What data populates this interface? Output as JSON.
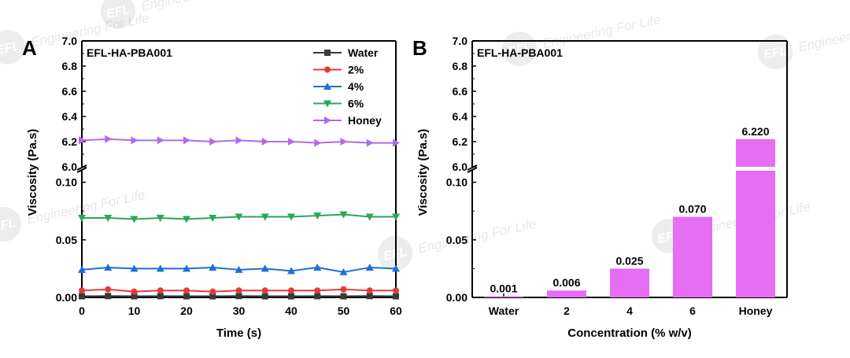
{
  "watermark": {
    "text": "Engineering For Life",
    "logo": "EFL"
  },
  "chart_data": [
    {
      "panel_label": "A",
      "type": "line",
      "title": "EFL-HA-PBA001",
      "xlabel": "Time (s)",
      "ylabel": "Viscosity (Pa.s)",
      "xlim": [
        0,
        60
      ],
      "x_ticks": [
        "0",
        "10",
        "20",
        "30",
        "40",
        "50",
        "60"
      ],
      "y_lower_range": [
        0,
        0.11
      ],
      "y_upper_range": [
        6.0,
        7.0
      ],
      "y_ticks_lower": [
        "0.00",
        "0.05",
        "0.10"
      ],
      "y_ticks_upper": [
        "6.0",
        "6.2",
        "6.4",
        "6.6",
        "6.8",
        "7.0"
      ],
      "x": [
        0,
        5,
        10,
        15,
        20,
        25,
        30,
        35,
        40,
        45,
        50,
        55,
        60
      ],
      "series": [
        {
          "name": "Water",
          "color": "#3a3a3a",
          "marker": "square",
          "values": [
            0.001,
            0.0012,
            0.001,
            0.0011,
            0.001,
            0.001,
            0.0012,
            0.001,
            0.001,
            0.0011,
            0.001,
            0.0012,
            0.001
          ]
        },
        {
          "name": "2%",
          "color": "#e33b3b",
          "marker": "circle",
          "values": [
            0.006,
            0.007,
            0.005,
            0.006,
            0.006,
            0.005,
            0.006,
            0.006,
            0.006,
            0.006,
            0.007,
            0.006,
            0.006
          ]
        },
        {
          "name": "4%",
          "color": "#1f6fd6",
          "marker": "triangle-up",
          "values": [
            0.024,
            0.026,
            0.025,
            0.025,
            0.025,
            0.026,
            0.024,
            0.025,
            0.023,
            0.026,
            0.022,
            0.026,
            0.025
          ]
        },
        {
          "name": "6%",
          "color": "#2ea65a",
          "marker": "triangle-down",
          "values": [
            0.069,
            0.069,
            0.068,
            0.069,
            0.068,
            0.069,
            0.07,
            0.07,
            0.07,
            0.071,
            0.072,
            0.07,
            0.07
          ]
        },
        {
          "name": "Honey",
          "color": "#b26ae8",
          "marker": "triangle-right",
          "values": [
            6.21,
            6.22,
            6.21,
            6.21,
            6.21,
            6.2,
            6.21,
            6.2,
            6.2,
            6.19,
            6.2,
            6.19,
            6.19
          ]
        }
      ]
    },
    {
      "panel_label": "B",
      "type": "bar",
      "title": "EFL-HA-PBA001",
      "xlabel": "Concentration (% w/v)",
      "ylabel": "Viscosity (Pa.s)",
      "bar_color": "#e56ef5",
      "categories": [
        "Water",
        "2",
        "4",
        "6",
        "Honey"
      ],
      "values": [
        0.001,
        0.006,
        0.025,
        0.07,
        6.22
      ],
      "value_labels": [
        "0.001",
        "0.006",
        "0.025",
        "0.070",
        "6.220"
      ],
      "y_lower_range": [
        0,
        0.11
      ],
      "y_upper_range": [
        6.0,
        7.0
      ],
      "y_ticks_lower": [
        "0.00",
        "0.05",
        "0.10"
      ],
      "y_ticks_upper": [
        "6.0",
        "6.2",
        "6.4",
        "6.6",
        "6.8",
        "7.0"
      ]
    }
  ]
}
